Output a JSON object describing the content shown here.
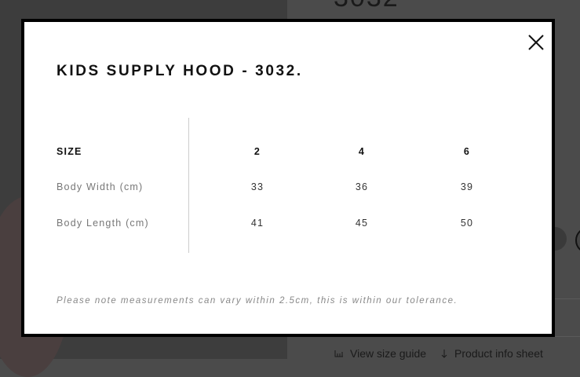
{
  "background": {
    "product_title_partial": "3032",
    "links": [
      {
        "icon": "ruler-icon",
        "label": "View size guide"
      },
      {
        "icon": "download-arrow-icon",
        "label": "Product info sheet"
      }
    ]
  },
  "modal": {
    "title": "KIDS SUPPLY HOOD - 3032.",
    "close_icon": "close-icon",
    "table": {
      "header": {
        "label": "SIZE",
        "values": [
          "2",
          "4",
          "6"
        ]
      },
      "rows": [
        {
          "label": "Body Width (cm)",
          "values": [
            "33",
            "36",
            "39"
          ]
        },
        {
          "label": "Body Length (cm)",
          "values": [
            "41",
            "45",
            "50"
          ]
        }
      ]
    },
    "note": "Please note measurements can vary within 2.5cm, this is within our tolerance."
  }
}
